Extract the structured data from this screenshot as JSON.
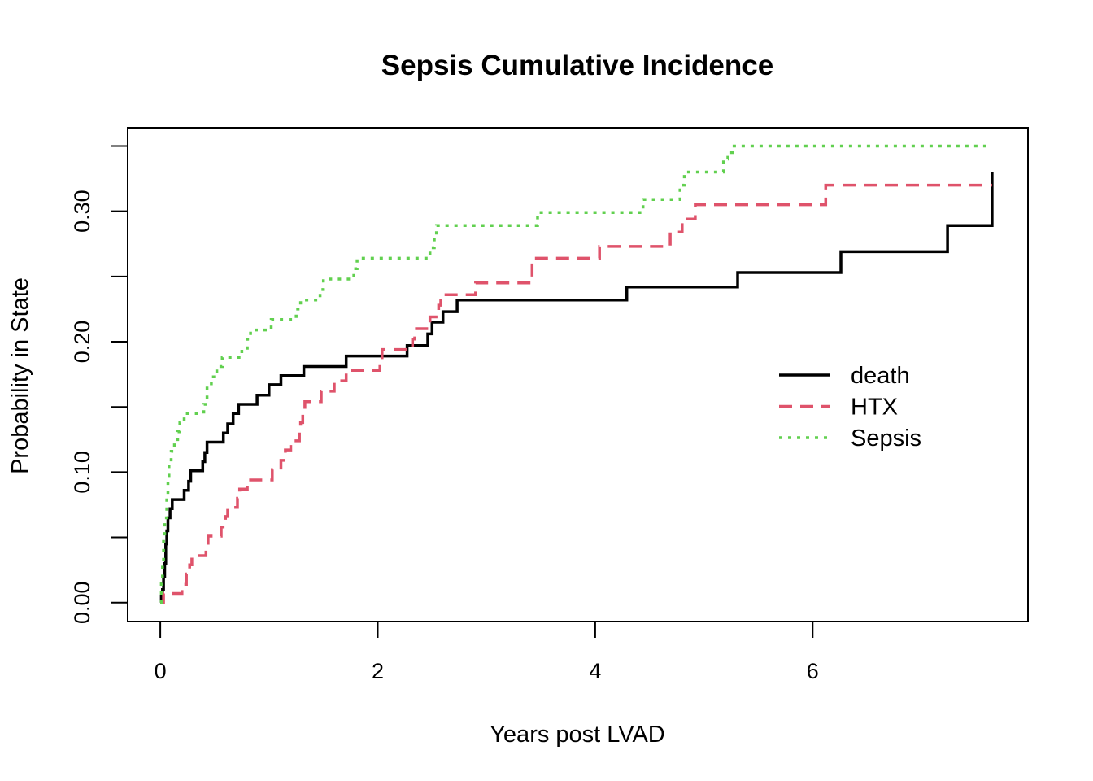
{
  "chart_data": {
    "type": "line",
    "step": true,
    "title": "Sepsis Cumulative Incidence",
    "xlabel": "Years post LVAD",
    "ylabel": "Probability in State",
    "xlim": [
      -0.3,
      7.98
    ],
    "ylim": [
      -0.0145,
      0.364
    ],
    "x_ticks": [
      0,
      2,
      4,
      6
    ],
    "x_tick_labels": [
      "0",
      "2",
      "4",
      "6"
    ],
    "y_ticks": [
      0.0,
      0.05,
      0.1,
      0.15,
      0.2,
      0.25,
      0.3,
      0.35
    ],
    "y_tick_labels": [
      "0.00",
      "",
      "0.10",
      "",
      "0.20",
      "",
      "0.30",
      ""
    ],
    "grid": false,
    "legend_position": "right",
    "series": [
      {
        "name": "death",
        "color": "#000000",
        "dash": "solid",
        "points": [
          [
            0.0,
            0.0
          ],
          [
            0.01,
            0.005
          ],
          [
            0.02,
            0.01
          ],
          [
            0.03,
            0.02
          ],
          [
            0.04,
            0.03
          ],
          [
            0.05,
            0.045
          ],
          [
            0.06,
            0.055
          ],
          [
            0.07,
            0.065
          ],
          [
            0.09,
            0.072
          ],
          [
            0.11,
            0.079
          ],
          [
            0.22,
            0.086
          ],
          [
            0.26,
            0.093
          ],
          [
            0.28,
            0.101
          ],
          [
            0.39,
            0.108
          ],
          [
            0.41,
            0.115
          ],
          [
            0.43,
            0.123
          ],
          [
            0.58,
            0.13
          ],
          [
            0.62,
            0.137
          ],
          [
            0.67,
            0.145
          ],
          [
            0.72,
            0.152
          ],
          [
            0.89,
            0.159
          ],
          [
            1.0,
            0.167
          ],
          [
            1.11,
            0.174
          ],
          [
            1.32,
            0.181
          ],
          [
            1.71,
            0.189
          ],
          [
            2.27,
            0.197
          ],
          [
            2.46,
            0.206
          ],
          [
            2.5,
            0.215
          ],
          [
            2.6,
            0.223
          ],
          [
            2.73,
            0.232
          ],
          [
            4.29,
            0.242
          ],
          [
            5.31,
            0.253
          ],
          [
            6.26,
            0.269
          ],
          [
            7.24,
            0.289
          ],
          [
            7.65,
            0.33
          ]
        ]
      },
      {
        "name": "HTX",
        "color": "#DF536B",
        "dash": "dashed",
        "points": [
          [
            0.0,
            0.0
          ],
          [
            0.03,
            0.007
          ],
          [
            0.2,
            0.014
          ],
          [
            0.24,
            0.022
          ],
          [
            0.27,
            0.029
          ],
          [
            0.29,
            0.036
          ],
          [
            0.42,
            0.044
          ],
          [
            0.44,
            0.051
          ],
          [
            0.56,
            0.058
          ],
          [
            0.6,
            0.066
          ],
          [
            0.62,
            0.073
          ],
          [
            0.71,
            0.08
          ],
          [
            0.73,
            0.087
          ],
          [
            0.8,
            0.094
          ],
          [
            1.03,
            0.102
          ],
          [
            1.11,
            0.109
          ],
          [
            1.15,
            0.117
          ],
          [
            1.2,
            0.124
          ],
          [
            1.28,
            0.131
          ],
          [
            1.29,
            0.138
          ],
          [
            1.31,
            0.146
          ],
          [
            1.33,
            0.154
          ],
          [
            1.48,
            0.162
          ],
          [
            1.6,
            0.17
          ],
          [
            1.71,
            0.178
          ],
          [
            2.02,
            0.186
          ],
          [
            2.04,
            0.194
          ],
          [
            2.32,
            0.202
          ],
          [
            2.34,
            0.21
          ],
          [
            2.48,
            0.219
          ],
          [
            2.56,
            0.228
          ],
          [
            2.58,
            0.236
          ],
          [
            2.9,
            0.245
          ],
          [
            3.42,
            0.264
          ],
          [
            4.04,
            0.273
          ],
          [
            4.69,
            0.284
          ],
          [
            4.8,
            0.294
          ],
          [
            4.92,
            0.305
          ],
          [
            6.12,
            0.32
          ],
          [
            7.65,
            0.32
          ]
        ]
      },
      {
        "name": "Sepsis",
        "color": "#61D04F",
        "dash": "dotted",
        "points": [
          [
            0.0,
            0.0
          ],
          [
            0.01,
            0.015
          ],
          [
            0.02,
            0.03
          ],
          [
            0.03,
            0.05
          ],
          [
            0.04,
            0.065
          ],
          [
            0.06,
            0.08
          ],
          [
            0.07,
            0.095
          ],
          [
            0.08,
            0.107
          ],
          [
            0.1,
            0.116
          ],
          [
            0.13,
            0.123
          ],
          [
            0.16,
            0.131
          ],
          [
            0.18,
            0.138
          ],
          [
            0.22,
            0.145
          ],
          [
            0.4,
            0.152
          ],
          [
            0.43,
            0.166
          ],
          [
            0.47,
            0.173
          ],
          [
            0.52,
            0.181
          ],
          [
            0.57,
            0.188
          ],
          [
            0.75,
            0.195
          ],
          [
            0.8,
            0.202
          ],
          [
            0.83,
            0.209
          ],
          [
            1.02,
            0.217
          ],
          [
            1.25,
            0.225
          ],
          [
            1.29,
            0.232
          ],
          [
            1.47,
            0.24
          ],
          [
            1.5,
            0.248
          ],
          [
            1.78,
            0.256
          ],
          [
            1.81,
            0.264
          ],
          [
            2.48,
            0.272
          ],
          [
            2.52,
            0.28
          ],
          [
            2.54,
            0.289
          ],
          [
            3.47,
            0.299
          ],
          [
            4.44,
            0.309
          ],
          [
            4.78,
            0.32
          ],
          [
            4.82,
            0.33
          ],
          [
            5.18,
            0.34
          ],
          [
            5.22,
            0.345
          ],
          [
            5.26,
            0.35
          ],
          [
            7.65,
            0.35
          ]
        ]
      }
    ]
  }
}
